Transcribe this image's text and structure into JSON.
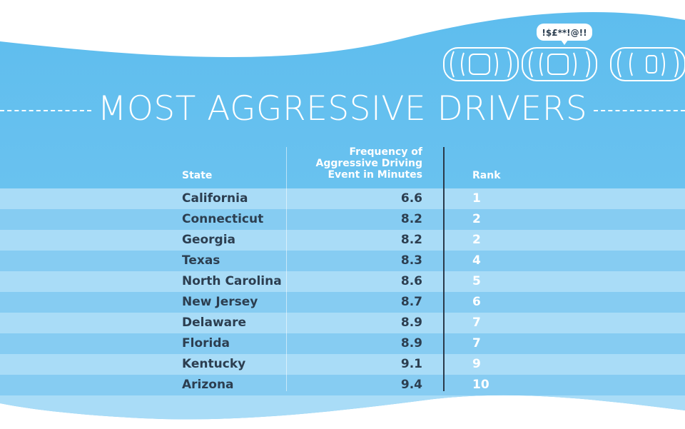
{
  "title": "MOST AGGRESSIVE DRIVERS",
  "speech_bubble": "!$£**!@!!",
  "colors": {
    "band": "#6cc2ef",
    "row_light": "#a9dcf7",
    "row_dark": "#86ccf2",
    "text_dark": "#2c3e50",
    "text_light": "#ffffff",
    "car_outline": "#ffffff"
  },
  "icons": [
    "car-icon",
    "car-icon",
    "car-icon",
    "speech-bubble-icon"
  ],
  "table": {
    "headers": {
      "state": "State",
      "frequency": "Frequency of Aggressive Driving Event in Minutes",
      "rank": "Rank"
    }
  },
  "chart_data": {
    "type": "table",
    "title": "MOST AGGRESSIVE DRIVERS",
    "columns": [
      "State",
      "Frequency of Aggressive Driving Event in Minutes",
      "Rank"
    ],
    "rows": [
      {
        "state": "California",
        "value": "6.6",
        "rank": "1"
      },
      {
        "state": "Connecticut",
        "value": "8.2",
        "rank": "2"
      },
      {
        "state": "Georgia",
        "value": "8.2",
        "rank": "2"
      },
      {
        "state": "Texas",
        "value": "8.3",
        "rank": "4"
      },
      {
        "state": "North Carolina",
        "value": "8.6",
        "rank": "5"
      },
      {
        "state": "New Jersey",
        "value": "8.7",
        "rank": "6"
      },
      {
        "state": "Delaware",
        "value": "8.9",
        "rank": "7"
      },
      {
        "state": "Florida",
        "value": "8.9",
        "rank": "7"
      },
      {
        "state": "Kentucky",
        "value": "9.1",
        "rank": "9"
      },
      {
        "state": "Arizona",
        "value": "9.4",
        "rank": "10"
      }
    ]
  }
}
